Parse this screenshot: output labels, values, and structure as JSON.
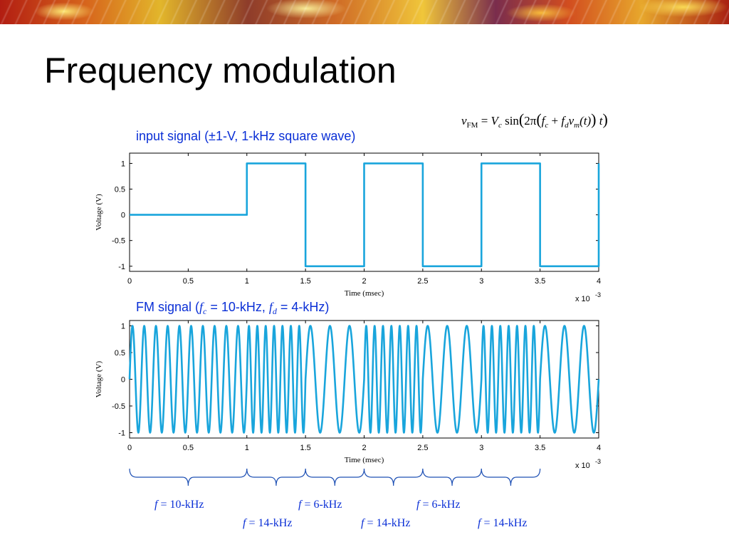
{
  "slide": {
    "title": "Frequency modulation"
  },
  "formula": {
    "v": "v",
    "v_sub": "FM",
    "eq": " = ",
    "Vc": "V",
    "Vc_sub": "c",
    "sin": " sin",
    "two_pi": "2π",
    "f": "f",
    "fc_sub": "c",
    "plus": " + ",
    "fd_sub": "d",
    "vm": "v",
    "vm_sub": "m",
    "t_arg": "(t)",
    "t": "t"
  },
  "labels": {
    "input_signal": "input signal (±1-V, 1-kHz square wave)",
    "fm_prefix": "FM signal (",
    "fm_f": "f",
    "fm_fc_sub": "c",
    "fm_mid": " = 10-kHz, ",
    "fm_fd_sub": "d",
    "fm_end": " = 4-kHz)"
  },
  "chart_data": [
    {
      "type": "line",
      "xlabel": "Time (msec)",
      "ylabel": "Voltage (V)",
      "x_multiplier": "x 10",
      "x_multiplier_exp": "-3",
      "xlim": [
        0,
        0.004
      ],
      "ylim": [
        -1.1,
        1.2
      ],
      "xticks": [
        0,
        0.0005,
        0.001,
        0.0015,
        0.002,
        0.0025,
        0.003,
        0.0035,
        0.004
      ],
      "xtick_labels": [
        "0",
        "0.5",
        "1",
        "1.5",
        "2",
        "2.5",
        "3",
        "3.5",
        "4"
      ],
      "yticks": [
        1,
        0.5,
        0,
        -0.5,
        -1
      ],
      "ytick_labels": [
        "1",
        "0.5",
        "0",
        "-0.5",
        "-1"
      ],
      "series": [
        {
          "x": [
            0,
            0.001,
            0.001,
            0.0015,
            0.0015,
            0.002,
            0.002,
            0.0025,
            0.0025,
            0.003,
            0.003,
            0.0035,
            0.0035,
            0.004,
            0.004
          ],
          "y": [
            0,
            0,
            1,
            1,
            -1,
            -1,
            1,
            1,
            -1,
            -1,
            1,
            1,
            -1,
            -1,
            1
          ]
        }
      ],
      "line_color": "#19a5dc",
      "grid": false
    },
    {
      "type": "line",
      "xlabel": "Time (msec)",
      "ylabel": "Voltage (V)",
      "x_multiplier": "x 10",
      "x_multiplier_exp": "-3",
      "xlim": [
        0,
        0.004
      ],
      "ylim": [
        -1.1,
        1.1
      ],
      "xticks": [
        0,
        0.0005,
        0.001,
        0.0015,
        0.002,
        0.0025,
        0.003,
        0.0035,
        0.004
      ],
      "xtick_labels": [
        "0",
        "0.5",
        "1",
        "1.5",
        "2",
        "2.5",
        "3",
        "3.5",
        "4"
      ],
      "yticks": [
        1,
        0.5,
        0,
        -0.5,
        -1
      ],
      "ytick_labels": [
        "1",
        "0.5",
        "0",
        "-0.5",
        "-1"
      ],
      "segments": [
        {
          "start": 0,
          "end": 0.001,
          "freq_hz": 10000
        },
        {
          "start": 0.001,
          "end": 0.0015,
          "freq_hz": 14000
        },
        {
          "start": 0.0015,
          "end": 0.002,
          "freq_hz": 6000
        },
        {
          "start": 0.002,
          "end": 0.0025,
          "freq_hz": 14000
        },
        {
          "start": 0.0025,
          "end": 0.003,
          "freq_hz": 6000
        },
        {
          "start": 0.003,
          "end": 0.0035,
          "freq_hz": 14000
        },
        {
          "start": 0.0035,
          "end": 0.004,
          "freq_hz": 6000
        }
      ],
      "line_color": "#19a5dc",
      "grid": false
    }
  ],
  "brackets": [
    {
      "start": 0,
      "end": 0.001
    },
    {
      "start": 0.001,
      "end": 0.0015
    },
    {
      "start": 0.0015,
      "end": 0.002
    },
    {
      "start": 0.002,
      "end": 0.0025
    },
    {
      "start": 0.0025,
      "end": 0.003
    },
    {
      "start": 0.003,
      "end": 0.0035
    }
  ],
  "freq_labels": [
    {
      "f": "f",
      "text": " = 10-kHz"
    },
    {
      "f": "f",
      "text": " = 6-kHz"
    },
    {
      "f": "f",
      "text": " = 6-kHz"
    },
    {
      "f": "f",
      "text": " = 14-kHz"
    },
    {
      "f": "f",
      "text": " = 14-kHz"
    },
    {
      "f": "f",
      "text": " = 14-kHz"
    }
  ],
  "colors": {
    "signal": "#19a5dc",
    "annotation": "#0a2fd6",
    "bracket": "#1e50b4"
  }
}
